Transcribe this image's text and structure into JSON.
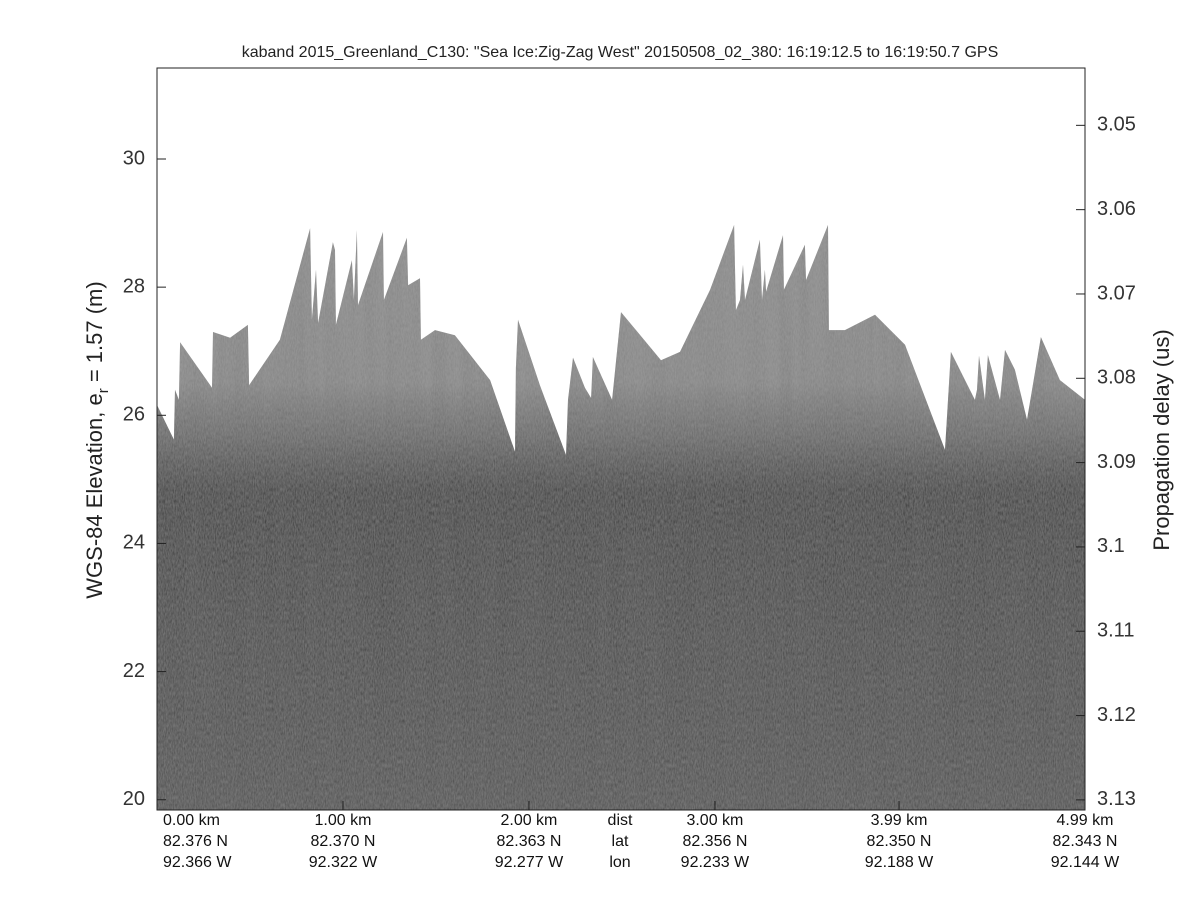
{
  "chart_data": {
    "type": "echogram",
    "title": "kaband 2015_Greenland_C130: \"Sea Ice:Zig-Zag West\"  20150508_02_380: 16:19:12.5 to 16:19:50.7 GPS",
    "ylabel_parts": [
      "WGS-84 Elevation, e",
      "r",
      " = 1.57 (m)"
    ],
    "y2label": "Propagation delay (us)",
    "xlim": [
      0,
      4.99
    ],
    "xticks": [
      {
        "value": 0,
        "label": "0.00 km"
      },
      {
        "value": 1,
        "label": "1.00 km"
      },
      {
        "value": 2,
        "label": "2.00 km"
      },
      {
        "value": 3,
        "label": "3.00 km"
      },
      {
        "value": 3.99,
        "label": "3.99 km"
      },
      {
        "value": 4.99,
        "label": "4.99 km"
      }
    ],
    "xtick_row_names": [
      "dist",
      "lat",
      "lon"
    ],
    "lat_labels": [
      "82.376 N",
      "82.370 N",
      "82.363 N",
      "82.356 N",
      "82.350 N",
      "82.343 N"
    ],
    "lon_labels": [
      "92.366 W",
      "92.322 W",
      "92.277 W",
      "92.233 W",
      "92.188 W",
      "92.144 W"
    ],
    "ylim": [
      19.84,
      31.42
    ],
    "yticks": [
      20,
      22,
      24,
      26,
      28,
      30
    ],
    "y2lim": [
      3.1312,
      3.0432
    ],
    "y2ticks": [
      3.05,
      3.06,
      3.07,
      3.08,
      3.09,
      3.1,
      3.11,
      3.12,
      3.13
    ],
    "x": [
      0,
      0.091,
      0.097,
      0.118,
      0.124,
      0.296,
      0.301,
      0.393,
      0.489,
      0.495,
      0.661,
      0.823,
      0.833,
      0.855,
      0.866,
      0.946,
      0.957,
      0.962,
      1.048,
      1.059,
      1.075,
      1.081,
      1.215,
      1.22,
      1.344,
      1.35,
      1.414,
      1.419,
      1.495,
      1.602,
      1.791,
      1.925,
      1.93,
      1.941,
      2.059,
      2.199,
      2.21,
      2.237,
      2.301,
      2.334,
      2.344,
      2.447,
      2.495,
      2.71,
      2.812,
      2.974,
      3.103,
      3.113,
      3.135,
      3.151,
      3.162,
      3.242,
      3.253,
      3.269,
      3.275,
      3.366,
      3.371,
      3.484,
      3.49,
      3.608,
      3.613,
      3.699,
      3.861,
      4.022,
      4.237,
      4.269,
      4.398,
      4.409,
      4.42,
      4.452,
      4.468,
      4.533,
      4.56,
      4.613,
      4.678,
      4.753,
      4.855,
      4.99
    ],
    "values": [
      26.16,
      25.62,
      26.4,
      26.24,
      27.14,
      26.43,
      27.3,
      27.21,
      27.41,
      26.47,
      27.18,
      28.92,
      27.49,
      28.27,
      27.44,
      28.7,
      28.58,
      27.41,
      28.42,
      27.8,
      28.89,
      27.72,
      28.86,
      27.8,
      28.77,
      28.03,
      28.14,
      27.18,
      27.33,
      27.25,
      26.55,
      25.43,
      26.74,
      27.49,
      26.47,
      25.38,
      26.24,
      26.9,
      26.43,
      26.27,
      26.91,
      26.24,
      27.61,
      26.86,
      26.99,
      27.96,
      28.97,
      27.64,
      27.8,
      28.35,
      27.8,
      28.74,
      27.8,
      28.27,
      27.93,
      28.81,
      27.96,
      28.66,
      28.11,
      28.97,
      27.33,
      27.33,
      27.57,
      27.1,
      25.46,
      26.99,
      26.24,
      26.4,
      26.93,
      26.24,
      26.94,
      26.24,
      27.02,
      26.71,
      25.93,
      27.22,
      26.55,
      26.24
    ]
  }
}
